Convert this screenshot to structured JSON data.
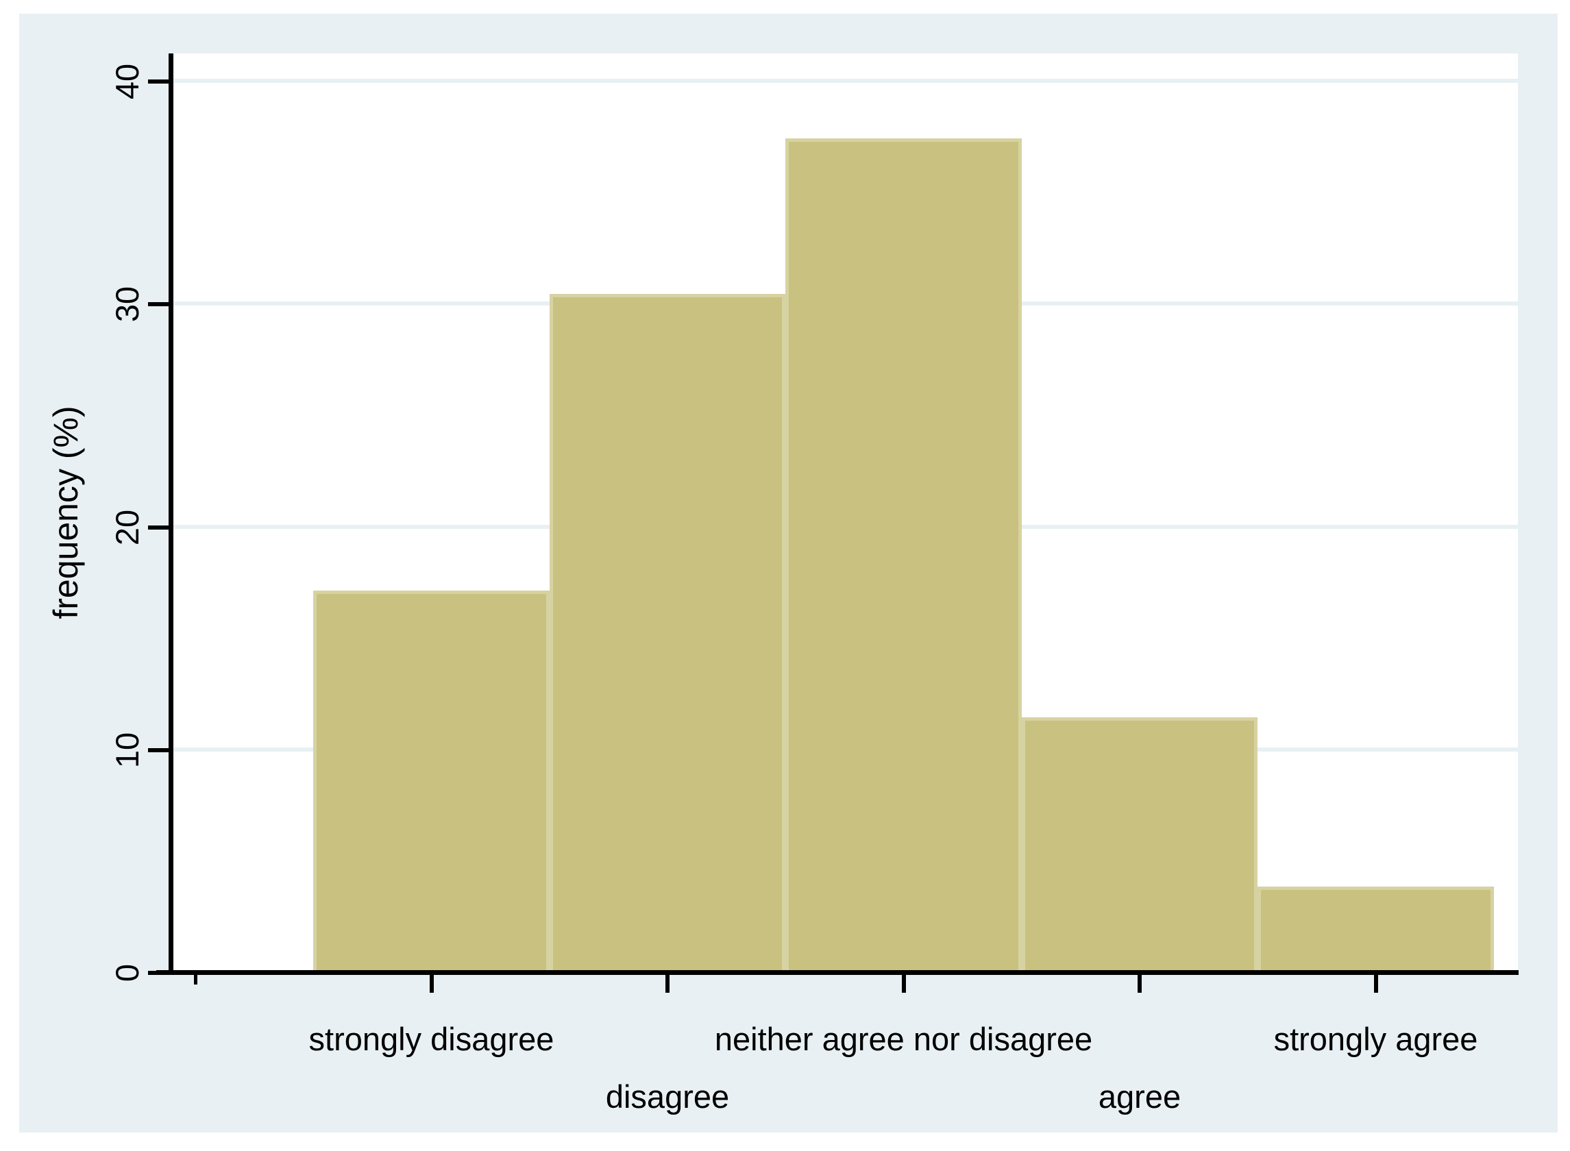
{
  "figure": {
    "outer_background": "#ffffff",
    "panel_background": "#e9f0f3"
  },
  "chart_data": {
    "type": "bar",
    "title": "",
    "categories": [
      "strongly disagree",
      "disagree",
      "neither agree nor disagree",
      "agree",
      "strongly agree"
    ],
    "values": [
      17.1,
      30.4,
      37.4,
      11.4,
      3.8
    ],
    "xlabel": "",
    "ylabel": "frequency (%)",
    "y_ticks": [
      0,
      10,
      20,
      30,
      40
    ],
    "y_tick_labels": [
      "0",
      "10",
      "20",
      "30",
      "40"
    ],
    "ylim": [
      0,
      41.2
    ],
    "x_positions": [
      1,
      2,
      3,
      4,
      5
    ],
    "bar_width_units": 1,
    "grid": "horizontal gridlines at y ticks, drawn behind bars",
    "legend": "none",
    "colors": {
      "bar_fill": "#c9c17f",
      "bar_border": "#d7d2a2",
      "gridline": "#e9f0f3",
      "axis": "#000000",
      "text": "#000000"
    }
  }
}
